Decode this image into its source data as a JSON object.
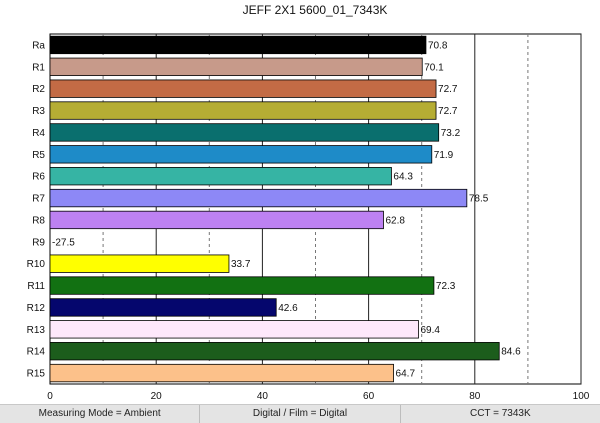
{
  "chart_data": {
    "type": "bar",
    "orientation": "horizontal",
    "title": "JEFF 2X1 5600_01_7343K",
    "categories": [
      "Ra",
      "R1",
      "R2",
      "R3",
      "R4",
      "R5",
      "R6",
      "R7",
      "R8",
      "R9",
      "R10",
      "R11",
      "R12",
      "R13",
      "R14",
      "R15"
    ],
    "values": [
      70.8,
      70.1,
      72.7,
      72.7,
      73.2,
      71.9,
      64.3,
      78.5,
      62.8,
      -27.5,
      33.7,
      72.3,
      42.6,
      69.4,
      84.6,
      64.7
    ],
    "value_labels": [
      "70.8",
      "70.1",
      "72.7",
      "72.7",
      "73.2",
      "71.9",
      "64.3",
      "78.5",
      "62.8",
      "-27.5",
      "33.7",
      "72.3",
      "42.6",
      "69.4",
      "84.6",
      "64.7"
    ],
    "colors": [
      "#000000",
      "#c79a8a",
      "#c36b45",
      "#b5ad34",
      "#0a6f6e",
      "#1e8bc8",
      "#36b4a4",
      "#8d88f6",
      "#bd81f2",
      "#ffffff",
      "#ffff00",
      "#127112",
      "#05066d",
      "#fee8fb",
      "#1c5d1c",
      "#fcc18a"
    ],
    "xlim": [
      0,
      100
    ],
    "xticks": [
      "0",
      "20",
      "40",
      "60",
      "80",
      "100"
    ],
    "solid_gridlines": [
      20,
      40,
      60,
      80,
      100
    ],
    "dashed_gridlines": [
      10,
      30,
      50,
      70,
      90
    ],
    "legend": "none"
  },
  "footer": {
    "mode": "Measuring Mode = Ambient",
    "film": "Digital / Film = Digital",
    "cct": "CCT = 7343K"
  }
}
